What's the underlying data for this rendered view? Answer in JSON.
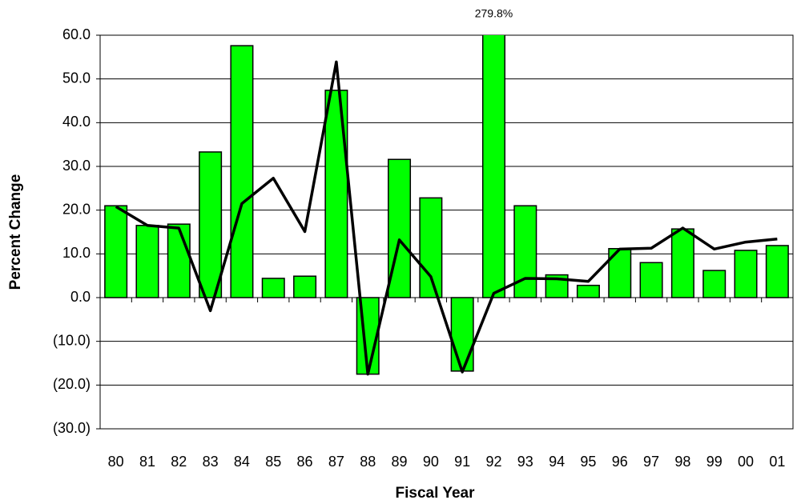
{
  "chart_data": {
    "type": "bar",
    "x_label": "Fiscal Year",
    "y_label": "Percent Change",
    "categories": [
      "80",
      "81",
      "82",
      "83",
      "84",
      "85",
      "86",
      "87",
      "88",
      "89",
      "90",
      "91",
      "92",
      "93",
      "94",
      "95",
      "96",
      "97",
      "98",
      "99",
      "00",
      "01"
    ],
    "series": [
      {
        "type": "bar",
        "color": "#00ff00",
        "values": [
          21.0,
          16.5,
          16.8,
          33.3,
          57.6,
          4.4,
          4.9,
          47.4,
          -17.5,
          31.6,
          22.8,
          -16.8,
          279.8,
          21.0,
          5.2,
          2.8,
          11.2,
          8.0,
          15.7,
          6.2,
          10.8,
          11.9
        ],
        "value_labels": [
          null,
          null,
          null,
          null,
          null,
          null,
          null,
          null,
          null,
          null,
          null,
          null,
          "279.8%",
          null,
          null,
          null,
          null,
          null,
          null,
          null,
          null,
          null
        ]
      },
      {
        "type": "line",
        "color": "#000000",
        "values": [
          20.8,
          16.5,
          15.9,
          -3.0,
          21.5,
          27.3,
          15.1,
          53.9,
          -17.5,
          13.2,
          4.8,
          -17.0,
          1.0,
          4.4,
          4.3,
          3.7,
          11.1,
          11.3,
          15.9,
          11.1,
          12.7,
          13.4
        ]
      }
    ],
    "ylim": [
      -30,
      60
    ],
    "yticks": [
      {
        "value": -30,
        "label": "(30.0)"
      },
      {
        "value": -20,
        "label": "(20.0)"
      },
      {
        "value": -10,
        "label": "(10.0)"
      },
      {
        "value": 0,
        "label": "0.0"
      },
      {
        "value": 10,
        "label": "10.0"
      },
      {
        "value": 20,
        "label": "20.0"
      },
      {
        "value": 30,
        "label": "30.0"
      },
      {
        "value": 40,
        "label": "40.0"
      },
      {
        "value": 50,
        "label": "50.0"
      },
      {
        "value": 60,
        "label": "60.0"
      }
    ],
    "negative_tick_color": "#ff0000",
    "grid": true
  }
}
